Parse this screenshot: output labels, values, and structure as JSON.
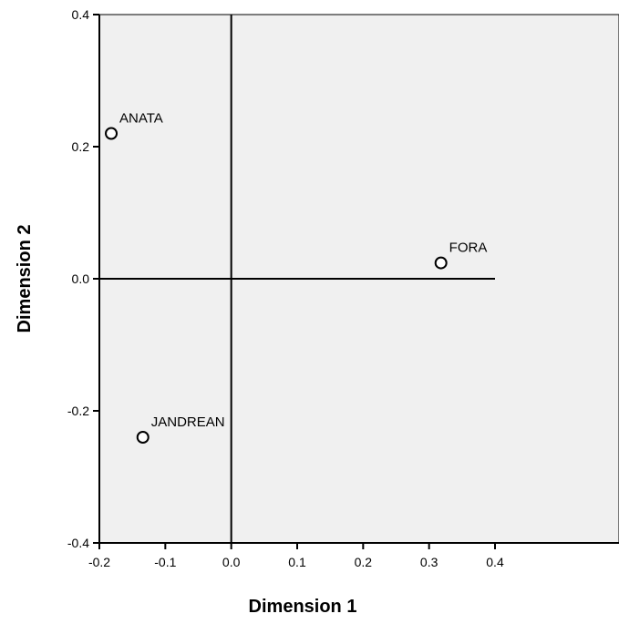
{
  "chart_data": {
    "type": "scatter",
    "xlabel": "Dimension 1",
    "ylabel": "Dimension 2",
    "xlim": [
      -0.2,
      0.4
    ],
    "ylim": [
      -0.4,
      0.4
    ],
    "x_ticks": [
      "-0.2",
      "-0.1",
      "0.0",
      "0.1",
      "0.2",
      "0.3",
      "0.4"
    ],
    "y_ticks": [
      "0.4",
      "0.2",
      "0.0",
      "-0.2",
      "-0.4"
    ],
    "grid": false,
    "reference_lines": {
      "x": 0.0,
      "y": 0.0
    },
    "colors": {
      "plot_background": "#f0f0f0",
      "marker": "#000000"
    },
    "points": [
      {
        "label": "ANATA",
        "x": -0.182,
        "y": 0.22
      },
      {
        "label": "FORA",
        "x": 0.318,
        "y": 0.024
      },
      {
        "label": "JANDREAN",
        "x": -0.134,
        "y": -0.24
      }
    ]
  }
}
